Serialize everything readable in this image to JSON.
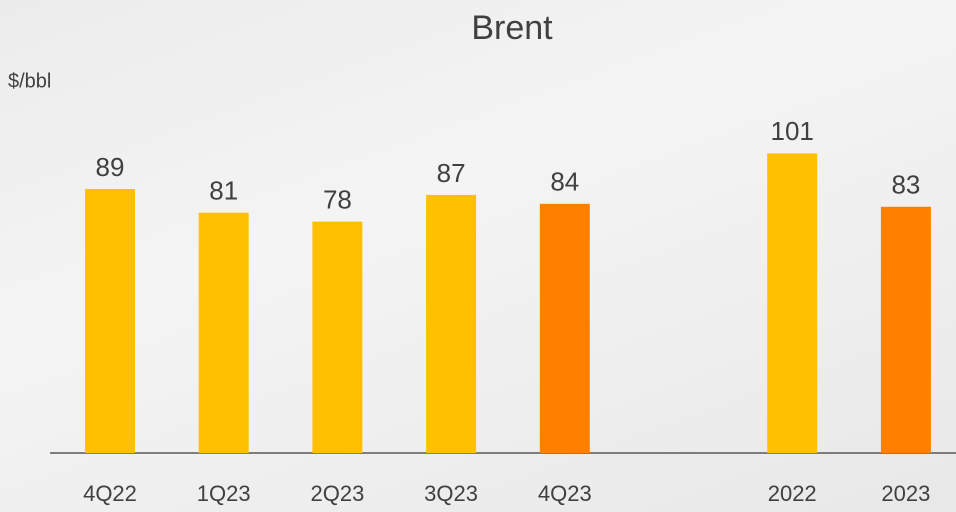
{
  "chart_data": {
    "type": "bar",
    "title": "Brent",
    "y_label": "$/bbl",
    "categories": [
      "4Q22",
      "1Q23",
      "2Q23",
      "3Q23",
      "4Q23",
      "2022",
      "2023"
    ],
    "values": [
      89,
      81,
      78,
      87,
      84,
      101,
      83
    ],
    "colors": [
      "#ffc000",
      "#ffc000",
      "#ffc000",
      "#ffc000",
      "#ff8000",
      "#ffc000",
      "#ff8000"
    ],
    "ylim": [
      0,
      120
    ]
  }
}
